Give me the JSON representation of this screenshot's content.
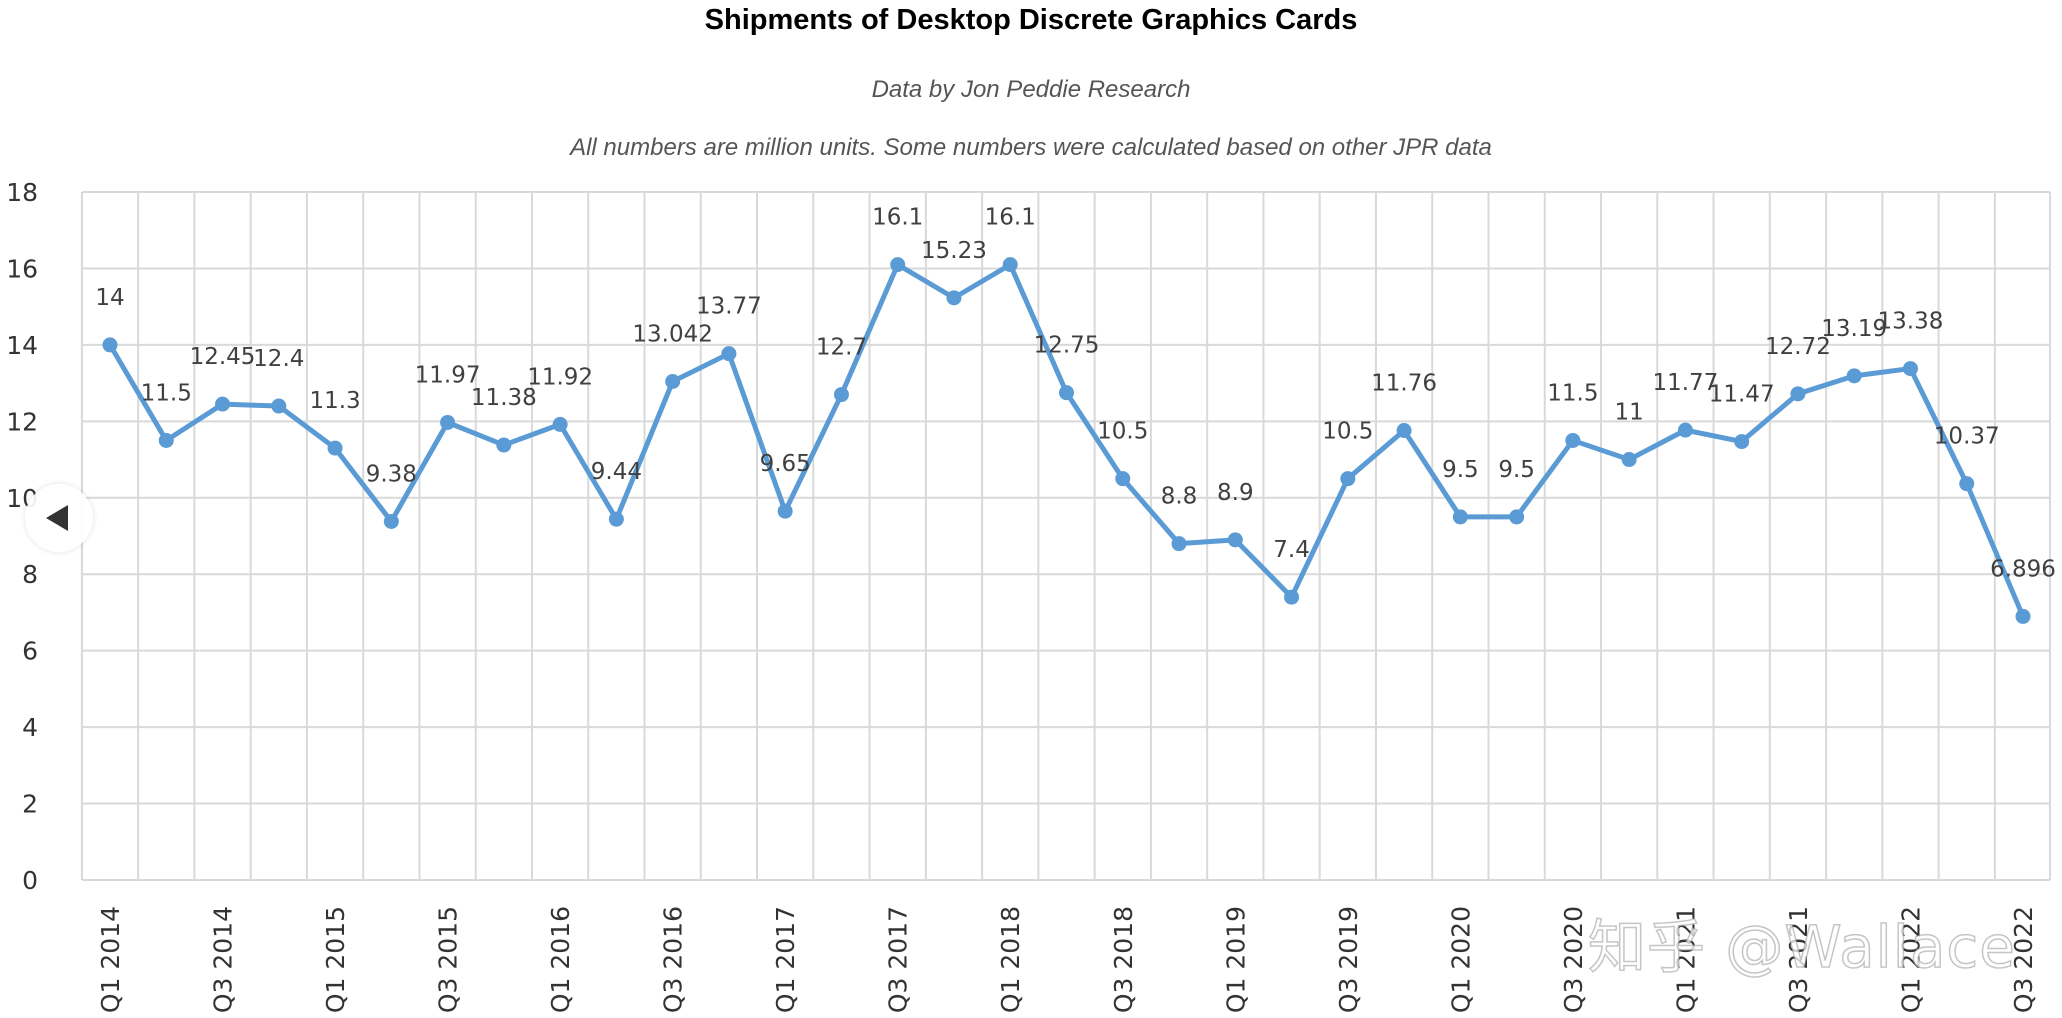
{
  "chart_data": {
    "type": "line",
    "title": "Shipments of Desktop Discrete Graphics Cards",
    "subtitle": "Data by Jon Peddie Research",
    "note": "All numbers are million units. Some numbers were calculated based on other JPR data",
    "xlabel": "",
    "ylabel": "",
    "ylim": [
      0,
      18
    ],
    "yticks": [
      0,
      2,
      4,
      6,
      8,
      10,
      12,
      14,
      16,
      18
    ],
    "grid": true,
    "series_color": "#5b9bd5",
    "categories": [
      "Q1 2014",
      "Q2 2014",
      "Q3 2014",
      "Q4 2014",
      "Q1 2015",
      "Q2 2015",
      "Q3 2015",
      "Q4 2015",
      "Q1 2016",
      "Q2 2016",
      "Q3 2016",
      "Q4 2016",
      "Q1 2017",
      "Q2 2017",
      "Q3 2017",
      "Q4 2017",
      "Q1 2018",
      "Q2 2018",
      "Q3 2018",
      "Q4 2018",
      "Q1 2019",
      "Q2 2019",
      "Q3 2019",
      "Q4 2019",
      "Q1 2020",
      "Q2 2020",
      "Q3 2020",
      "Q4 2020",
      "Q1 2021",
      "Q2 2021",
      "Q3 2021",
      "Q4 2021",
      "Q1 2022",
      "Q2 2022",
      "Q3 2022"
    ],
    "x_tick_labels": [
      "Q1 2014",
      "Q3 2014",
      "Q1 2015",
      "Q3 2015",
      "Q1 2016",
      "Q3 2016",
      "Q1 2017",
      "Q3 2017",
      "Q1 2018",
      "Q3 2018",
      "Q1 2019",
      "Q3 2019",
      "Q1 2020",
      "Q3 2020",
      "Q1 2021",
      "Q3 2021",
      "Q1 2022",
      "Q3 2022"
    ],
    "values": [
      14,
      11.5,
      12.45,
      12.4,
      11.3,
      9.38,
      11.97,
      11.38,
      11.92,
      9.44,
      13.042,
      13.77,
      9.65,
      12.7,
      16.1,
      15.23,
      16.1,
      12.75,
      10.5,
      8.8,
      8.9,
      7.4,
      10.5,
      11.76,
      9.5,
      9.5,
      11.5,
      11,
      11.77,
      11.47,
      12.72,
      13.19,
      13.38,
      10.37,
      6.896
    ],
    "data_labels": [
      "14",
      "11.5",
      "12.45",
      "12.4",
      "11.3",
      "9.38",
      "11.97",
      "11.38",
      "11.92",
      "9.44",
      "13.042",
      "13.77",
      "9.65",
      "12.7",
      "16.1",
      "15.23",
      "16.1",
      "12.75",
      "10.5",
      "8.8",
      "8.9",
      "7.4",
      "10.5",
      "11.76",
      "9.5",
      "9.5",
      "11.5",
      "11",
      "11.77",
      "11.47",
      "12.72",
      "13.19",
      "13.38",
      "10.37",
      "6.896"
    ]
  },
  "watermark": "知乎 @Wallace",
  "controls": {
    "prev_label": "previous"
  }
}
